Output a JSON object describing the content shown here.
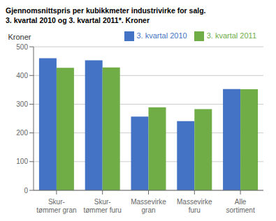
{
  "chart_data": {
    "type": "bar",
    "title": "Gjennomsnittspris per kubikkmeter industrivirke for salg.",
    "subtitle": "3. kvartal 2010 og 3. kvartal 2011*. Kroner",
    "ylabel": "Kroner",
    "categories": [
      "Skur-\ntømmer gran",
      "Skur-\ntømmer furu",
      "Massevirke\ngran",
      "Massevirke\nfuru",
      "Alle\nsortiment"
    ],
    "series": [
      {
        "name": "3. kvartal 2010",
        "color": "#4472C4",
        "values": [
          460,
          453,
          257,
          241,
          353
        ]
      },
      {
        "name": "3. kvartal 2011",
        "color": "#70AD47",
        "values": [
          427,
          428,
          289,
          283,
          352
        ]
      }
    ],
    "ylim": [
      0,
      500
    ],
    "yticks": [
      0,
      100,
      200,
      300,
      400,
      500
    ],
    "grid": true,
    "legend": "upper right"
  }
}
